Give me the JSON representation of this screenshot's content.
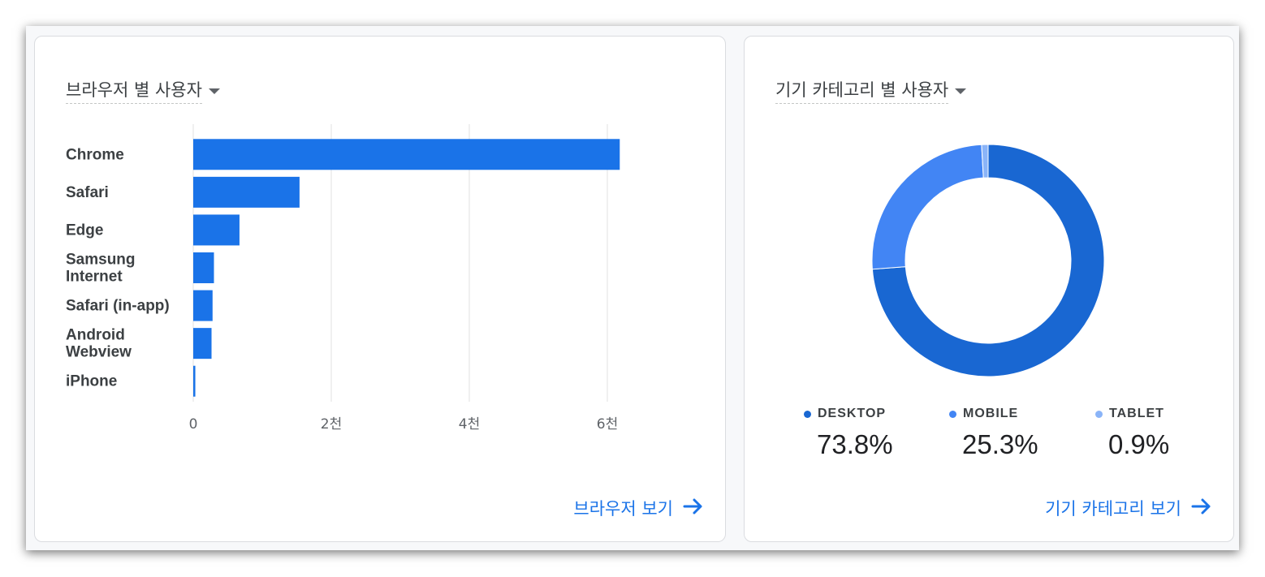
{
  "browser_card": {
    "title": "브라우저 별 사용자",
    "link_label": "브라우저 보기",
    "chart_data": {
      "type": "bar",
      "orientation": "horizontal",
      "categories": [
        "Chrome",
        "Safari",
        "Edge",
        "Samsung Internet",
        "Safari (in-app)",
        "Android Webview",
        "iPhone"
      ],
      "category_lines": [
        [
          "Chrome"
        ],
        [
          "Safari"
        ],
        [
          "Edge"
        ],
        [
          "Samsung",
          "Internet"
        ],
        [
          "Safari (in-app)"
        ],
        [
          "Android",
          "Webview"
        ],
        [
          "iPhone"
        ]
      ],
      "values": [
        6180,
        1540,
        670,
        300,
        280,
        265,
        30
      ],
      "xlim": [
        0,
        6200
      ],
      "ticks": [
        0,
        2000,
        4000,
        6000
      ],
      "tick_labels": [
        "0",
        "2천",
        "4천",
        "6천"
      ],
      "color": "#1a73e8",
      "grid": true
    }
  },
  "device_card": {
    "title": "기기 카테고리 별 사용자",
    "link_label": "기기 카테고리 보기",
    "chart_data": {
      "type": "pie",
      "style": "donut",
      "slices": [
        {
          "label": "DESKTOP",
          "value": 73.8,
          "display": "73.8%",
          "color": "#1967d2"
        },
        {
          "label": "MOBILE",
          "value": 25.3,
          "display": "25.3%",
          "color": "#4285f4"
        },
        {
          "label": "TABLET",
          "value": 0.9,
          "display": "0.9%",
          "color": "#8ab4f8"
        }
      ]
    }
  }
}
